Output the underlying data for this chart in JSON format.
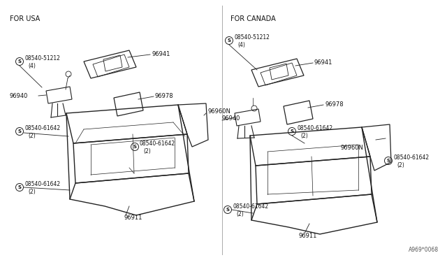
{
  "bg_color": "#ffffff",
  "line_color": "#222222",
  "text_color": "#111111",
  "fig_width": 6.4,
  "fig_height": 3.72,
  "title_left": "FOR USA",
  "title_right": "FOR CANADA",
  "footer_text": "A969*0068"
}
